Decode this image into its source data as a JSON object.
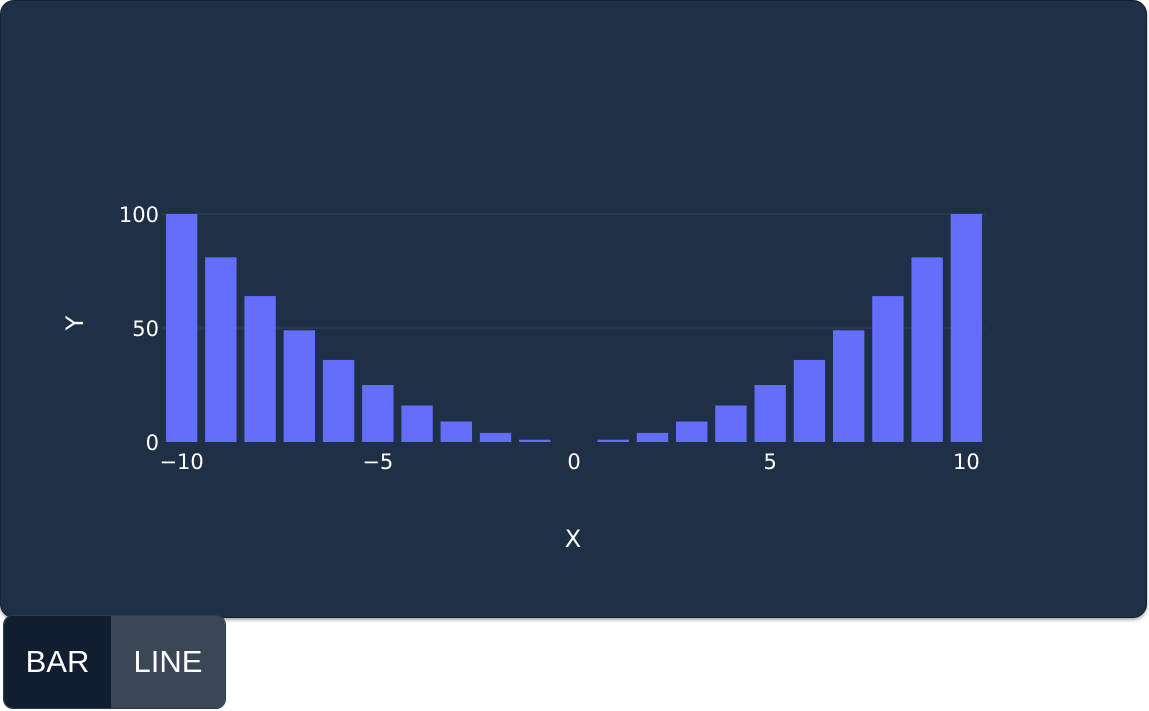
{
  "controls": {
    "bar_label": "BAR",
    "line_label": "LINE",
    "active": "bar"
  },
  "colors": {
    "bar": "#636efa",
    "grid": "#2b3b52",
    "card": "#1f2f46"
  },
  "chart_data": {
    "type": "bar",
    "x": [
      -10,
      -9,
      -8,
      -7,
      -6,
      -5,
      -4,
      -3,
      -2,
      -1,
      0,
      1,
      2,
      3,
      4,
      5,
      6,
      7,
      8,
      9,
      10
    ],
    "values": [
      100,
      81,
      64,
      49,
      36,
      25,
      16,
      9,
      4,
      1,
      0,
      1,
      4,
      9,
      16,
      25,
      36,
      49,
      64,
      81,
      100
    ],
    "title": "",
    "xlabel": "X",
    "ylabel": "Y",
    "xlim": [
      -10.5,
      10.5
    ],
    "ylim": [
      0,
      100
    ],
    "xticks": [
      -10,
      -5,
      0,
      5,
      10
    ],
    "xtick_labels": [
      "−10",
      "−5",
      "0",
      "5",
      "10"
    ],
    "yticks": [
      0,
      50,
      100
    ],
    "ytick_labels": [
      "0",
      "50",
      "100"
    ],
    "grid": true
  }
}
